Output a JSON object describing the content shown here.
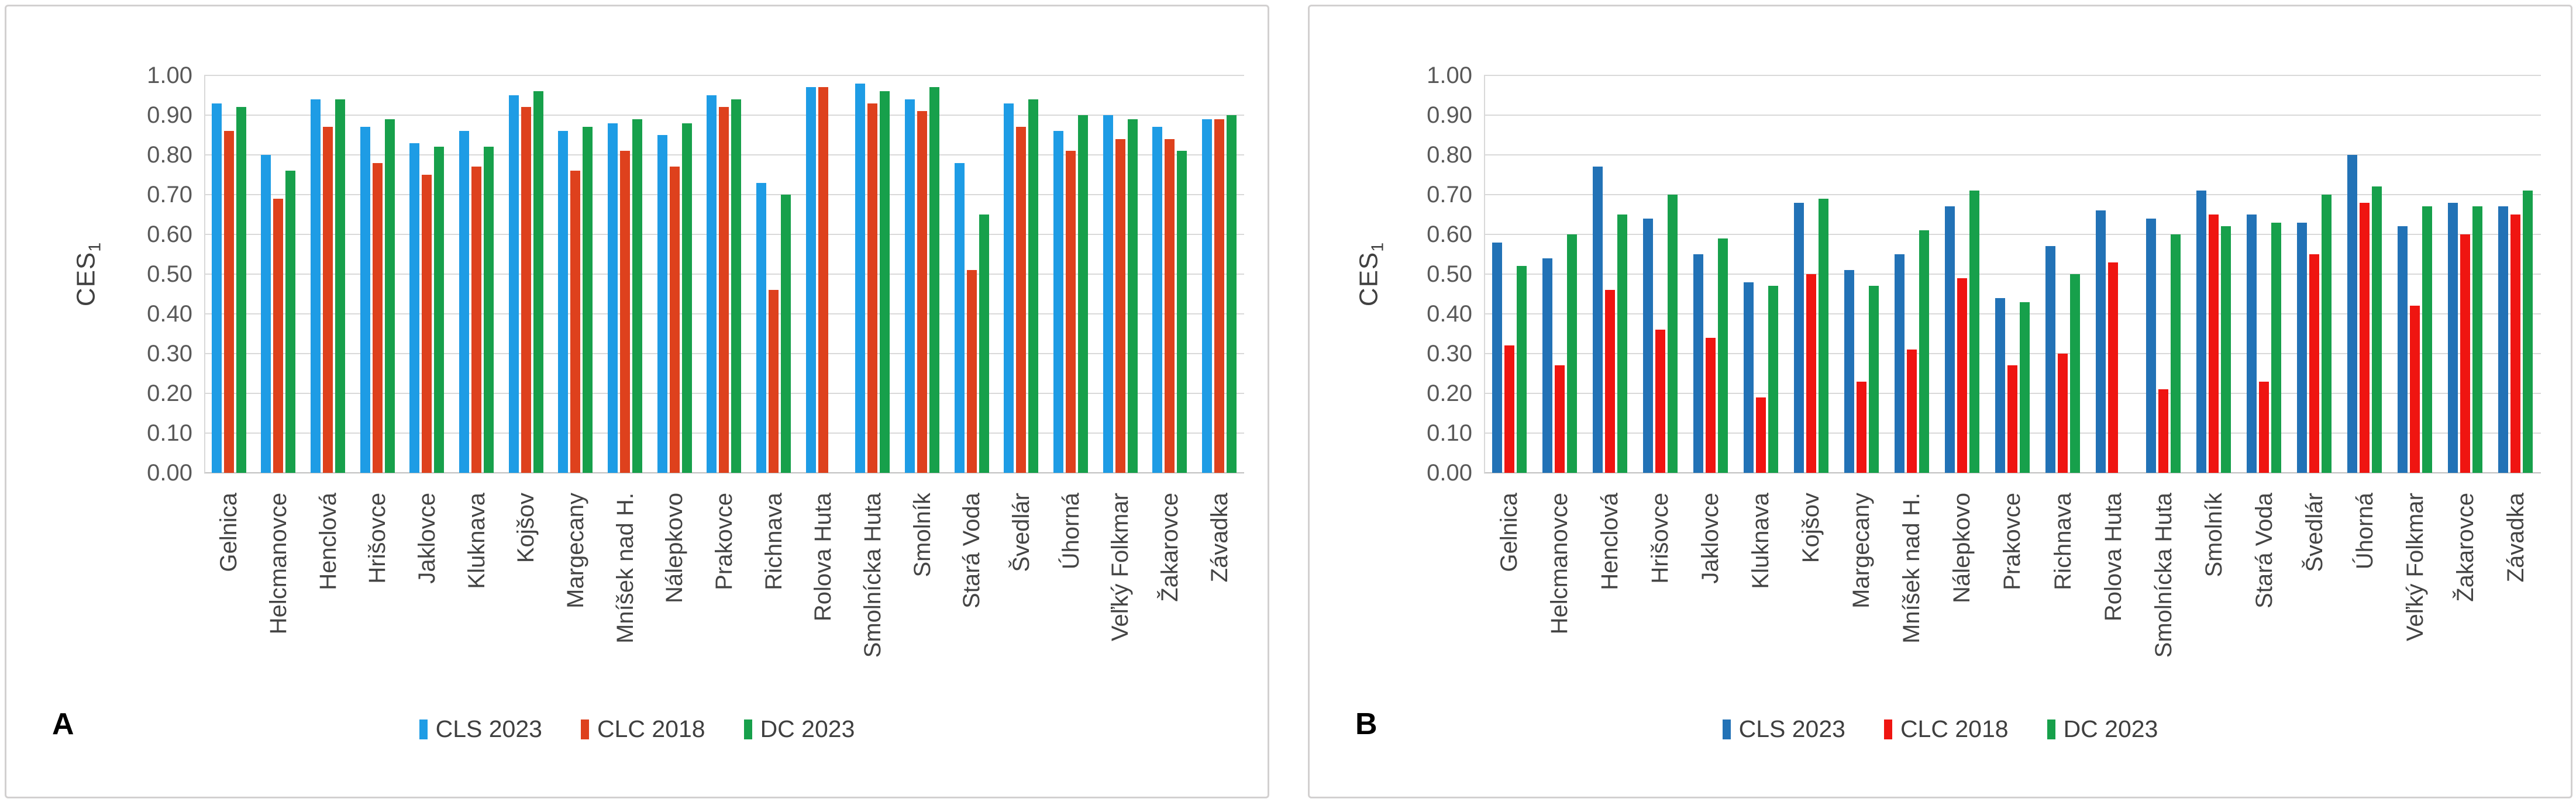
{
  "page": {
    "background": "#ffffff"
  },
  "panels": [
    {
      "label": "A"
    },
    {
      "label": "B"
    }
  ],
  "chart_data": [
    {
      "type": "bar",
      "panel_label": "A",
      "title": "",
      "xlabel": "",
      "ylabel": "CES",
      "ylabel_sub": "1",
      "ylim": [
        0,
        1
      ],
      "ytick_step": 0.1,
      "yticks": [
        "1.00",
        "0.90",
        "0.80",
        "0.70",
        "0.60",
        "0.50",
        "0.40",
        "0.30",
        "0.20",
        "0.10",
        "0.00"
      ],
      "grid": true,
      "legend_position": "bottom",
      "categories": [
        "Gelnica",
        "Helcmanovce",
        "Henclová",
        "Hrišovce",
        "Jaklovce",
        "Kluknava",
        "Kojšov",
        "Margecany",
        "Mníšek nad H.",
        "Nálepkovo",
        "Prakovce",
        "Richnava",
        "Rolova Huta",
        "Smolnícka Huta",
        "Smolník",
        "Stará Voda",
        "Švedlár",
        "Úhorná",
        "Veľký Folkmar",
        "Žakarovce",
        "Závadka"
      ],
      "series": [
        {
          "name": "CLS 2023",
          "color": "#1e9ce5",
          "values": [
            0.93,
            0.8,
            0.94,
            0.87,
            0.83,
            0.86,
            0.95,
            0.86,
            0.88,
            0.85,
            0.95,
            0.73,
            0.97,
            0.98,
            0.94,
            0.78,
            0.93,
            0.86,
            0.9,
            0.87,
            0.89
          ]
        },
        {
          "name": "CLC 2018",
          "color": "#de411d",
          "values": [
            0.86,
            0.69,
            0.87,
            0.78,
            0.75,
            0.77,
            0.92,
            0.76,
            0.81,
            0.77,
            0.92,
            0.46,
            0.97,
            0.93,
            0.91,
            0.51,
            0.87,
            0.81,
            0.84,
            0.84,
            0.89
          ]
        },
        {
          "name": "DC 2023",
          "color": "#17a04b",
          "values": [
            0.92,
            0.76,
            0.94,
            0.89,
            0.82,
            0.82,
            0.96,
            0.87,
            0.89,
            0.88,
            0.94,
            0.7,
            null,
            0.96,
            0.97,
            0.65,
            0.94,
            0.9,
            0.89,
            0.81,
            0.9
          ]
        }
      ]
    },
    {
      "type": "bar",
      "panel_label": "B",
      "title": "",
      "xlabel": "",
      "ylabel": "CES",
      "ylabel_sub": "1",
      "ylim": [
        0,
        1
      ],
      "ytick_step": 0.1,
      "yticks": [
        "1.00",
        "0.90",
        "0.80",
        "0.70",
        "0.60",
        "0.50",
        "0.40",
        "0.30",
        "0.20",
        "0.10",
        "0.00"
      ],
      "grid": true,
      "legend_position": "bottom",
      "categories": [
        "Gelnica",
        "Helcmanovce",
        "Henclová",
        "Hrišovce",
        "Jaklovce",
        "Kluknava",
        "Kojšov",
        "Margecany",
        "Mníšek nad H.",
        "Nálepkovo",
        "Prakovce",
        "Richnava",
        "Rolova Huta",
        "Smolnícka Huta",
        "Smolník",
        "Stará Voda",
        "Švedlár",
        "Úhorná",
        "Veľký Folkmar",
        "Žakarovce",
        "Závadka"
      ],
      "series": [
        {
          "name": "CLS 2023",
          "color": "#2272b6",
          "values": [
            0.58,
            0.54,
            0.77,
            0.64,
            0.55,
            0.48,
            0.68,
            0.51,
            0.55,
            0.67,
            0.44,
            0.57,
            0.66,
            0.64,
            0.71,
            0.65,
            0.63,
            0.8,
            0.62,
            0.68,
            0.67
          ]
        },
        {
          "name": "CLC 2018",
          "color": "#ef1511",
          "values": [
            0.32,
            0.27,
            0.46,
            0.36,
            0.34,
            0.19,
            0.5,
            0.23,
            0.31,
            0.49,
            0.27,
            0.3,
            0.53,
            0.21,
            0.65,
            0.23,
            0.55,
            0.68,
            0.42,
            0.6,
            0.65
          ]
        },
        {
          "name": "DC 2023",
          "color": "#17a04b",
          "values": [
            0.52,
            0.6,
            0.65,
            0.7,
            0.59,
            0.47,
            0.69,
            0.47,
            0.61,
            0.71,
            0.43,
            0.5,
            null,
            0.6,
            0.62,
            0.63,
            0.7,
            0.72,
            0.67,
            0.67,
            0.71
          ]
        }
      ]
    }
  ]
}
